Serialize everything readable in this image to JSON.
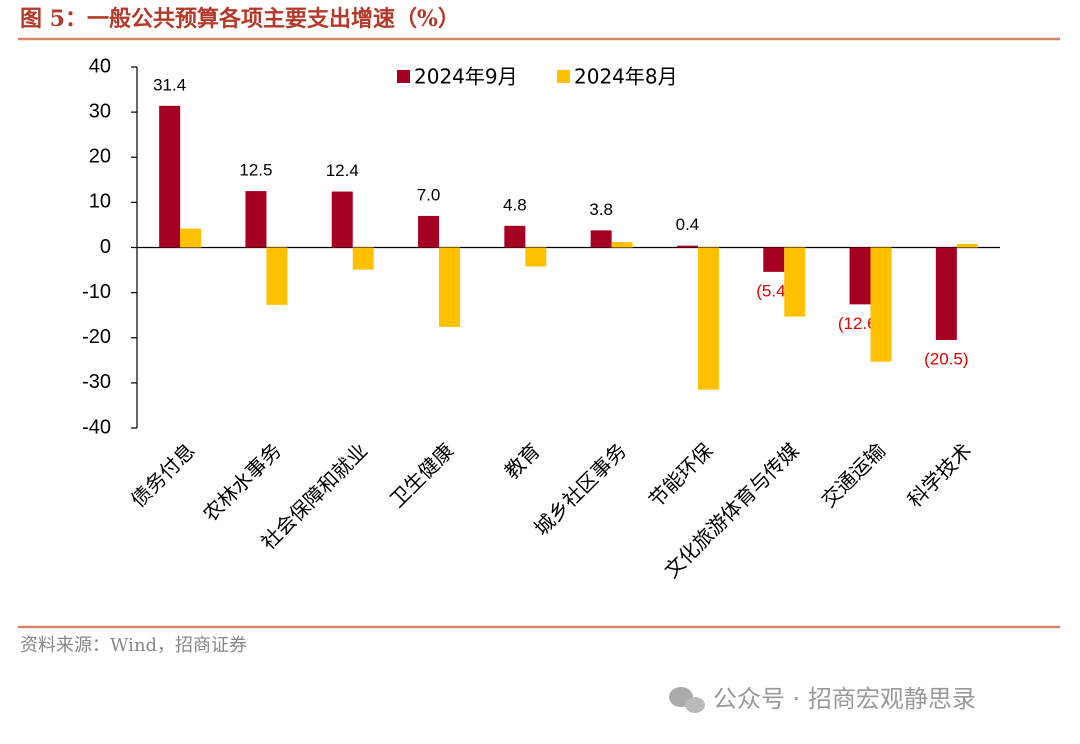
{
  "chart_data": {
    "type": "bar",
    "title": "图 5：一般公共预算各项主要支出增速（%）",
    "categories": [
      "债务付息",
      "农林水事务",
      "社会保障和就业",
      "卫生健康",
      "教育",
      "城乡社区事务",
      "节能环保",
      "文化旅游体育与传媒",
      "交通运输",
      "科学技术"
    ],
    "series": [
      {
        "name": "2024年9月",
        "color": "#a50021",
        "values": [
          31.4,
          12.5,
          12.4,
          7.0,
          4.8,
          3.8,
          0.4,
          -5.4,
          -12.6,
          -20.5
        ],
        "value_labels": [
          "31.4",
          "12.5",
          "12.4",
          "7.0",
          "4.8",
          "3.8",
          "0.4",
          "(5.4)",
          "(12.6)",
          "(20.5)"
        ]
      },
      {
        "name": "2024年8月",
        "color": "#ffc000",
        "values": [
          4.2,
          -12.7,
          -4.9,
          -17.6,
          -4.2,
          1.2,
          -31.5,
          -15.3,
          -25.3,
          0.8
        ]
      }
    ],
    "ylim": [
      -40,
      40
    ],
    "yticks": [
      -40,
      -30,
      -20,
      -10,
      0,
      10,
      20,
      30,
      40
    ],
    "grid": false,
    "legend": "top",
    "source": "资料来源：Wind，招商证券"
  },
  "watermark": "公众号 · 招商宏观静思录"
}
